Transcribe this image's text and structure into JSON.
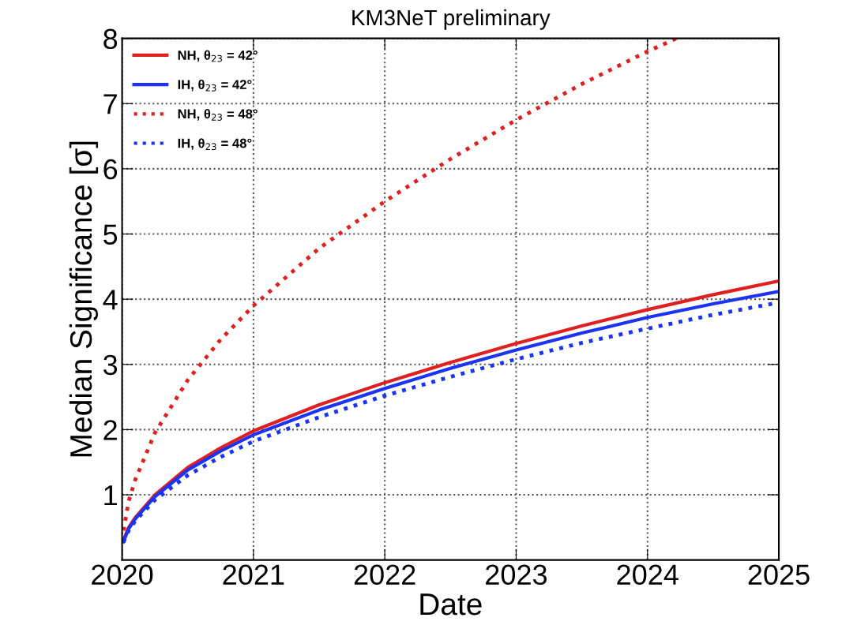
{
  "chart_data": {
    "type": "line",
    "title": "KM3NeT preliminary",
    "xlabel": "Date",
    "ylabel": "Median Significance [σ]",
    "xlim": [
      2020,
      2025
    ],
    "xticks": [
      2020,
      2021,
      2022,
      2023,
      2024,
      2025
    ],
    "ylim": [
      0,
      8
    ],
    "yticks": [
      1,
      2,
      3,
      4,
      5,
      6,
      7,
      8
    ],
    "grid": true,
    "legend": "top left",
    "marker": "none",
    "series": [
      {
        "name": "NH, θ$_{23}$ = 42°",
        "color": "#e02020",
        "line_style": "solid",
        "x": [
          2020.01,
          2020.05,
          2020.1,
          2020.25,
          2020.5,
          2020.75,
          2021,
          2021.5,
          2022,
          2022.5,
          2023,
          2023.5,
          2024,
          2024.5,
          2025
        ],
        "values": [
          0.3,
          0.5,
          0.65,
          1.0,
          1.42,
          1.72,
          1.98,
          2.38,
          2.72,
          3.03,
          3.32,
          3.59,
          3.84,
          4.07,
          4.28
        ]
      },
      {
        "name": "IH, θ$_{23}$ = 42°",
        "color": "#1a33f5",
        "line_style": "solid",
        "x": [
          2020.01,
          2020.05,
          2020.1,
          2020.25,
          2020.5,
          2020.75,
          2021,
          2021.5,
          2022,
          2022.5,
          2023,
          2023.5,
          2024,
          2024.5,
          2025
        ],
        "values": [
          0.28,
          0.48,
          0.63,
          0.97,
          1.38,
          1.67,
          1.92,
          2.3,
          2.63,
          2.94,
          3.22,
          3.48,
          3.72,
          3.93,
          4.12
        ]
      },
      {
        "name": "NH, θ$_{23}$ = 48°",
        "color": "#e02020",
        "line_style": "dotted",
        "x": [
          2020.01,
          2020.05,
          2020.1,
          2020.25,
          2020.5,
          2020.75,
          2021,
          2021.5,
          2022,
          2022.5,
          2023,
          2023.5,
          2024,
          2024.22
        ],
        "values": [
          0.45,
          0.9,
          1.23,
          1.95,
          2.76,
          3.38,
          3.9,
          4.78,
          5.5,
          6.15,
          6.75,
          7.3,
          7.8,
          8.0
        ]
      },
      {
        "name": "IH, θ$_{23}$ = 48°",
        "color": "#1a33f5",
        "line_style": "dotted",
        "x": [
          2020.01,
          2020.05,
          2020.1,
          2020.25,
          2020.5,
          2020.75,
          2021,
          2021.5,
          2022,
          2022.5,
          2023,
          2023.5,
          2024,
          2024.5,
          2025
        ],
        "values": [
          0.27,
          0.45,
          0.6,
          0.92,
          1.3,
          1.58,
          1.82,
          2.19,
          2.52,
          2.81,
          3.08,
          3.33,
          3.55,
          3.76,
          3.95
        ]
      }
    ]
  }
}
